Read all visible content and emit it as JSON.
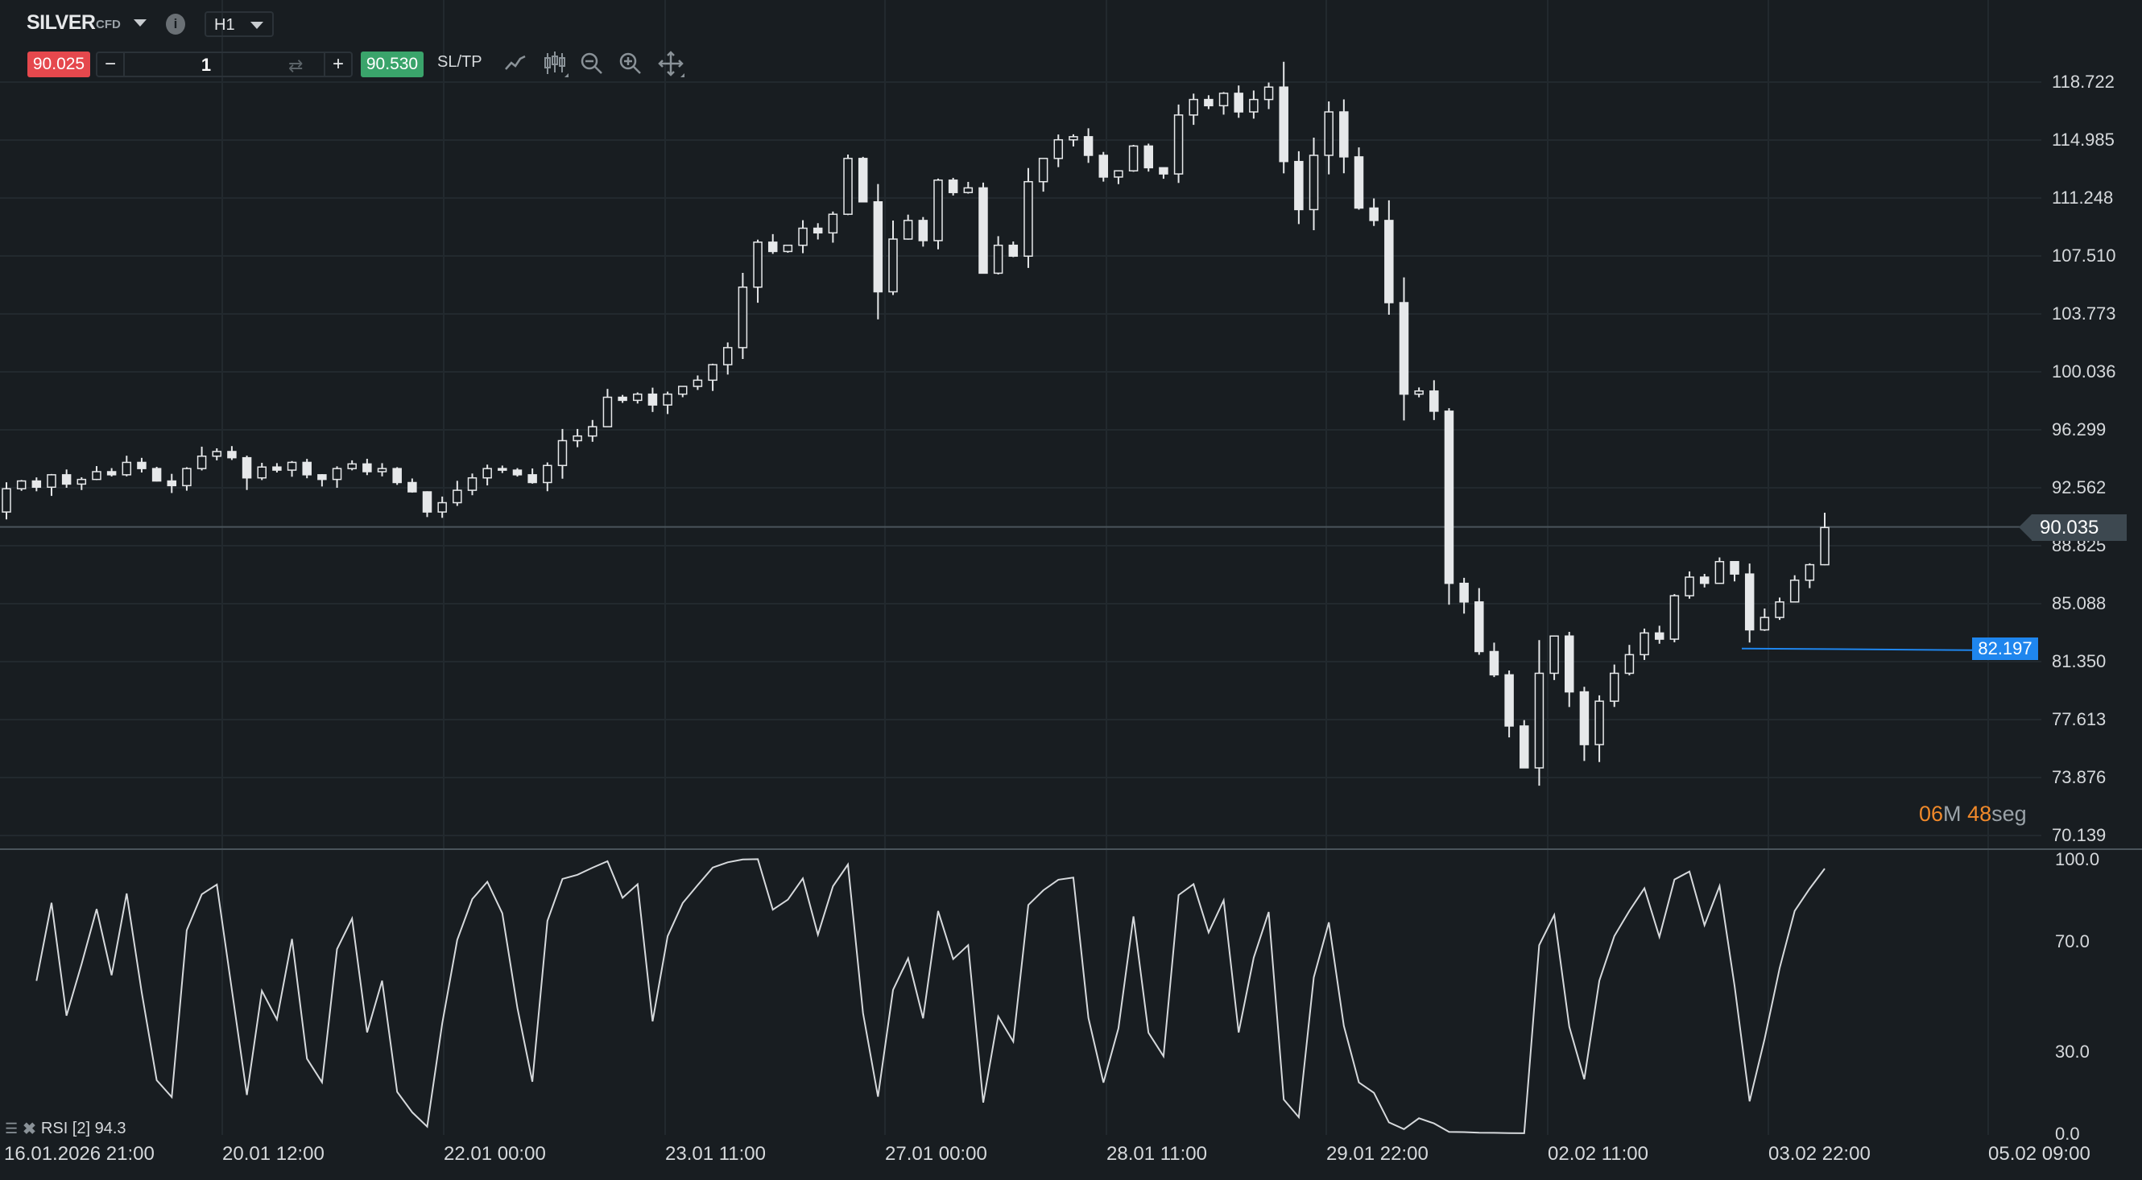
{
  "header": {
    "symbol": "SILVER",
    "symbol_type": "CFD",
    "timeframe": "H1",
    "info_icon": "info-icon"
  },
  "trade_bar": {
    "sell_price": "90.025",
    "buy_price": "90.530",
    "quantity": "1",
    "minus": "−",
    "plus": "+",
    "sltp_label": "SL/TP",
    "tools": [
      "line-chart-icon",
      "candlestick-icon",
      "zoom-out-icon",
      "zoom-in-icon",
      "move-icon"
    ]
  },
  "colors": {
    "background": "#181d21",
    "sell": "#e5484d",
    "buy": "#3aa46b",
    "candle": "#e6e8ea",
    "order_line": "#1f86ee",
    "timer_accent": "#f0892a"
  },
  "price_axis": [
    "118.722",
    "114.985",
    "111.248",
    "107.510",
    "103.773",
    "100.036",
    "96.299",
    "92.562",
    "88.825",
    "85.088",
    "81.350",
    "77.613",
    "73.876",
    "70.139"
  ],
  "current_price": "90.035",
  "order_line": {
    "price": "82.197"
  },
  "timer": {
    "minutes": "06",
    "m_unit": "M",
    "seconds": "48",
    "s_unit": "seg"
  },
  "rsi": {
    "label": "RSI [2] 94.3",
    "period": 2,
    "axis": [
      "100.0",
      "70.0",
      "30.0",
      "0.0"
    ]
  },
  "time_axis": [
    "16.01.2026 21:00",
    "20.01 12:00",
    "22.01 00:00",
    "23.01 11:00",
    "27.01 00:00",
    "28.01 11:00",
    "29.01 22:00",
    "02.02 11:00",
    "03.02 22:00",
    "05.02 09:00"
  ],
  "chart_data": {
    "type": "candlestick",
    "ylim": [
      70.139,
      118.722
    ],
    "close": [
      92.5,
      93.0,
      92.6,
      93.4,
      92.8,
      93.1,
      93.6,
      93.4,
      94.2,
      93.8,
      93.0,
      92.7,
      93.8,
      94.6,
      94.9,
      94.5,
      93.2,
      93.9,
      93.7,
      94.2,
      93.4,
      93.1,
      93.8,
      94.1,
      93.6,
      93.8,
      92.9,
      92.3,
      91.0,
      91.6,
      92.4,
      93.2,
      93.8,
      93.7,
      93.4,
      92.9,
      94.0,
      95.6,
      95.9,
      96.5,
      98.4,
      98.2,
      98.6,
      97.9,
      98.6,
      99.1,
      99.5,
      100.5,
      101.6,
      105.5,
      108.4,
      107.8,
      108.2,
      109.3,
      109.0,
      110.2,
      113.8,
      111.0,
      105.2,
      108.6,
      109.8,
      108.5,
      112.4,
      111.6,
      111.9,
      106.4,
      108.2,
      107.5,
      112.3,
      113.8,
      115.0,
      115.2,
      114.0,
      112.6,
      113.0,
      114.6,
      113.2,
      112.8,
      116.6,
      117.6,
      117.2,
      118.0,
      116.8,
      117.6,
      118.4,
      113.6,
      110.5,
      114.0,
      116.8,
      113.9,
      110.6,
      109.8,
      104.5,
      98.6,
      98.8,
      97.5,
      86.4,
      85.2,
      82.0,
      80.5,
      77.2,
      74.5,
      80.6,
      83.0,
      79.4,
      76.0,
      78.8,
      80.6,
      81.8,
      83.2,
      82.8,
      85.6,
      86.8,
      86.4,
      87.8,
      87.0,
      83.4,
      84.2,
      85.2,
      86.6,
      87.6,
      90.0
    ]
  }
}
